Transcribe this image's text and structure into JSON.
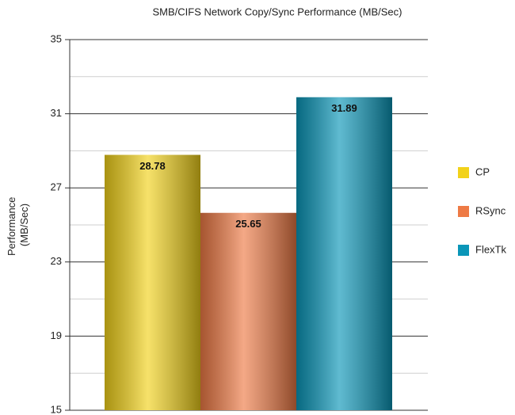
{
  "chart_data": {
    "type": "bar",
    "title": "SMB/CIFS Network Copy/Sync Performance (MB/Sec)",
    "ylabel": [
      "Performance",
      "(MB/Sec)"
    ],
    "categories": [
      null
    ],
    "series": [
      {
        "name": "CP",
        "color": "#f2d21a",
        "values": [
          28.78
        ]
      },
      {
        "name": "RSync",
        "color": "#ee7a45",
        "values": [
          25.65
        ]
      },
      {
        "name": "FlexTk",
        "color": "#0a96b8",
        "values": [
          31.89
        ]
      }
    ],
    "ylim": [
      15,
      35
    ],
    "yticks": [
      15,
      19,
      23,
      27,
      31,
      35
    ],
    "yminorticks": [
      17,
      21,
      25,
      29,
      33
    ],
    "grid": true,
    "legend": "right"
  }
}
